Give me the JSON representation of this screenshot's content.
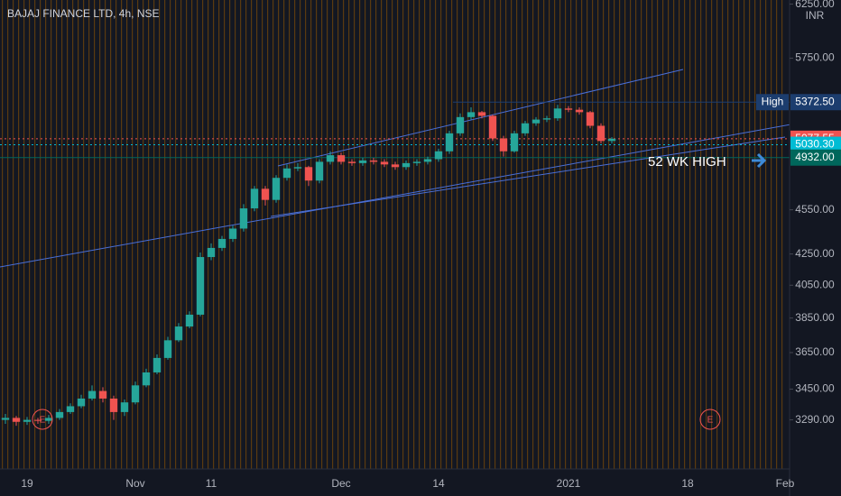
{
  "chart_data": {
    "type": "candlestick",
    "title": "BAJAJ FINANCE LTD, 4h, NSE",
    "currency": "INR",
    "annotation": "52 WK HIGH",
    "event_marker": "E",
    "log_scale": true,
    "up_color": "#26a69a",
    "down_color": "#ef5350",
    "categories": [
      null,
      null,
      "19",
      null,
      null,
      null,
      null,
      null,
      null,
      null,
      null,
      null,
      "Nov",
      null,
      null,
      null,
      null,
      null,
      null,
      "11",
      null,
      null,
      null,
      null,
      null,
      null,
      null,
      null,
      null,
      null,
      null,
      "Dec",
      null,
      null,
      null,
      null,
      null,
      null,
      null,
      null,
      "14",
      null,
      null,
      null,
      null,
      null,
      null,
      null,
      null,
      null,
      null,
      null,
      "2021",
      null,
      null,
      null,
      null,
      null,
      null,
      null,
      null,
      null,
      null,
      "18",
      null,
      null,
      null,
      null,
      null,
      null,
      null,
      null,
      "Feb"
    ],
    "open": [
      3290,
      3300,
      3280,
      3290,
      3285,
      3300,
      3330,
      3360,
      3400,
      3440,
      3400,
      3330,
      3380,
      3470,
      3540,
      3620,
      3720,
      3800,
      3870,
      4230,
      4290,
      4350,
      4420,
      4560,
      4700,
      4620,
      4780,
      4850,
      4860,
      4760,
      4900,
      4950,
      4900,
      4890,
      4910,
      4900,
      4880,
      4860,
      4890,
      4900,
      4920,
      4980,
      5120,
      5250,
      5290,
      5260,
      5080,
      4980,
      5120,
      5200,
      5230,
      5240,
      5320,
      5310,
      5290,
      5180,
      5060,
      null,
      null,
      null,
      null,
      null,
      null,
      null,
      null,
      null,
      null,
      null,
      null,
      null,
      null,
      null,
      null
    ],
    "high": [
      3320,
      3310,
      3305,
      3300,
      3315,
      3345,
      3375,
      3420,
      3470,
      3460,
      3415,
      3395,
      3490,
      3560,
      3640,
      3740,
      3820,
      3890,
      4260,
      4320,
      4370,
      4440,
      4590,
      4720,
      4720,
      4800,
      4880,
      4890,
      4870,
      4920,
      4980,
      4970,
      4920,
      4930,
      4930,
      4920,
      4900,
      4910,
      4920,
      4940,
      5000,
      5140,
      5280,
      5330,
      5300,
      5270,
      5100,
      5140,
      5220,
      5250,
      5260,
      5350,
      5340,
      5330,
      5300,
      5200,
      5090,
      null,
      null,
      null,
      null,
      null,
      null,
      null,
      null,
      null,
      null,
      null,
      null,
      null,
      null,
      null,
      null
    ],
    "low": [
      3270,
      3260,
      3265,
      3270,
      3270,
      3290,
      3320,
      3350,
      3390,
      3380,
      3290,
      3310,
      3370,
      3460,
      3530,
      3610,
      3710,
      3790,
      3860,
      4210,
      4270,
      4330,
      4400,
      4540,
      4580,
      4600,
      4760,
      4830,
      4720,
      4740,
      4880,
      4880,
      4870,
      4870,
      4880,
      4860,
      4840,
      4840,
      4870,
      4880,
      4900,
      4960,
      5100,
      5230,
      5240,
      5060,
      4940,
      4970,
      5100,
      5180,
      5210,
      5220,
      5290,
      5270,
      5160,
      5040,
      5040,
      null,
      null,
      null,
      null,
      null,
      null,
      null,
      null,
      null,
      null,
      null,
      null,
      null,
      null,
      null,
      null
    ],
    "close": [
      3300,
      3280,
      3290,
      3285,
      3300,
      3330,
      3360,
      3400,
      3440,
      3400,
      3330,
      3380,
      3470,
      3540,
      3620,
      3720,
      3800,
      3870,
      4230,
      4290,
      4350,
      4420,
      4560,
      4700,
      4620,
      4780,
      4850,
      4860,
      4760,
      4900,
      4950,
      4900,
      4890,
      4910,
      4900,
      4880,
      4860,
      4890,
      4900,
      4920,
      4980,
      5120,
      5250,
      5290,
      5260,
      5080,
      4980,
      5120,
      5200,
      5230,
      5240,
      5320,
      5310,
      5290,
      5180,
      5060,
      5077.55,
      null,
      null,
      null,
      null,
      null,
      null,
      null,
      null,
      null,
      null,
      null,
      null,
      null,
      null,
      null,
      null
    ],
    "ylim": [
      3050,
      6290
    ],
    "yticks": [
      {
        "value": 6250,
        "label": "6250.00"
      },
      {
        "value": 5750,
        "label": "5750.00"
      },
      {
        "value": 4550,
        "label": "4550.00"
      },
      {
        "value": 4250,
        "label": "4250.00"
      },
      {
        "value": 4050,
        "label": "4050.00"
      },
      {
        "value": 3850,
        "label": "3850.00"
      },
      {
        "value": 3650,
        "label": "3650.00"
      },
      {
        "value": 3450,
        "label": "3450.00"
      },
      {
        "value": 3290,
        "label": "3290.00"
      }
    ],
    "price_labels": [
      {
        "tag": "High",
        "value": 5372.5,
        "label": "5372.50",
        "color": "#1c3d6e",
        "line": "solid"
      },
      {
        "value": 5077.55,
        "label": "5077.55",
        "color": "#ef5350",
        "line": "dotted"
      },
      {
        "value": 5030.3,
        "label": "5030.30",
        "color": "#00bcd4",
        "line": "dotted"
      },
      {
        "value": 4932,
        "label": "4932.00",
        "color": "#00675b",
        "line": "solid"
      }
    ]
  }
}
